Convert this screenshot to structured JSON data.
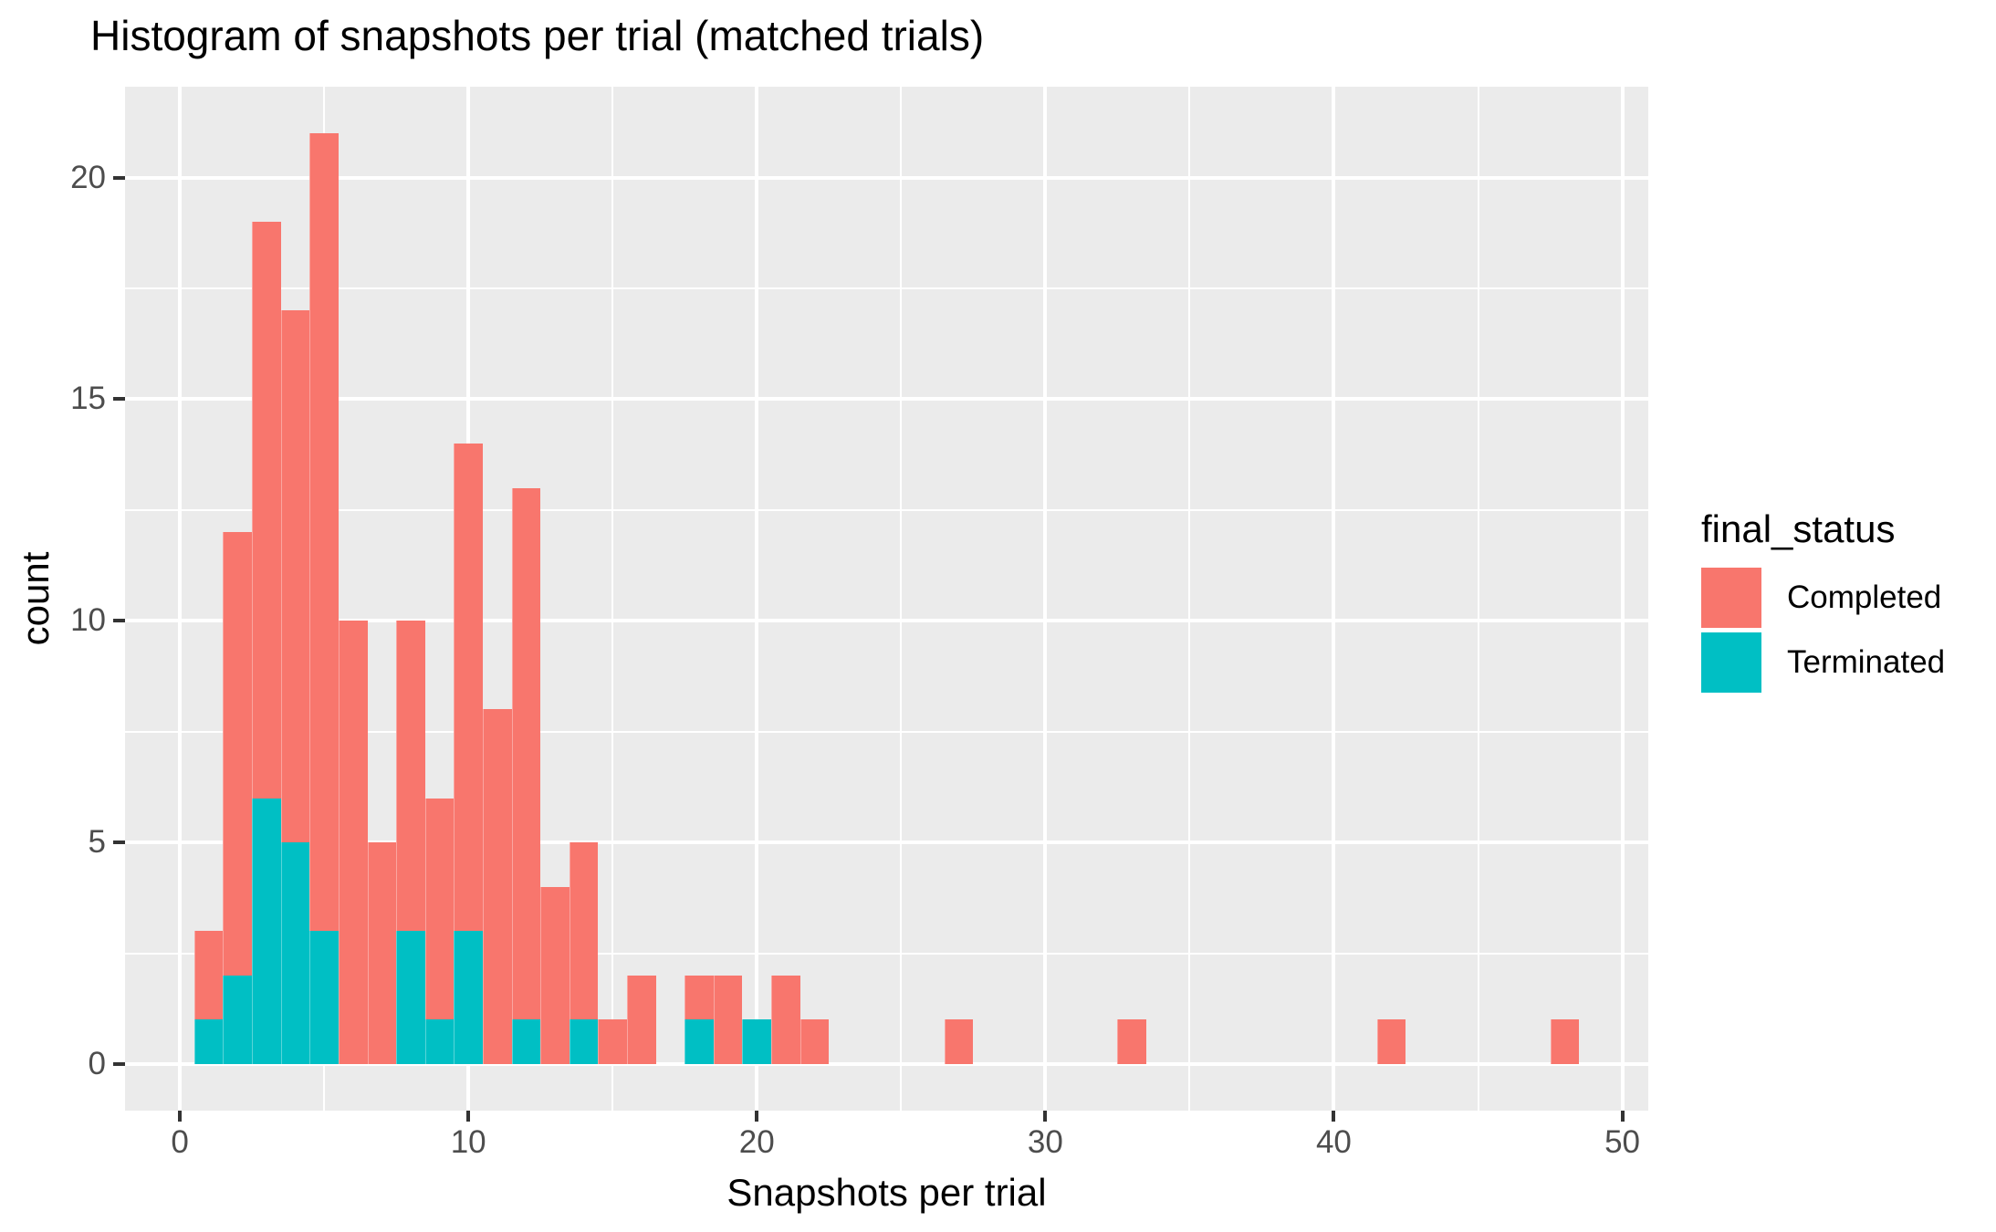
{
  "title": "Histogram of snapshots per trial (matched trials)",
  "chart_data": {
    "type": "bar",
    "subtype": "stacked_histogram",
    "title": "Histogram of snapshots per trial (matched trials)",
    "xlabel": "Snapshots per trial",
    "ylabel": "count",
    "legend_title": "final_status",
    "legend_position": "right",
    "grid": true,
    "binwidth": 1,
    "xlim": [
      -1.9,
      50.9
    ],
    "ylim": [
      -1.05,
      22.05
    ],
    "x_ticks": [
      0,
      10,
      20,
      30,
      40,
      50
    ],
    "y_ticks": [
      0,
      5,
      10,
      15,
      20
    ],
    "x_minor_gridlines": [
      5,
      15,
      25,
      35,
      45
    ],
    "y_minor_gridlines": [
      2.5,
      7.5,
      12.5,
      17.5
    ],
    "series": [
      {
        "name": "Completed",
        "color": "#F8766D"
      },
      {
        "name": "Terminated",
        "color": "#00BFC4"
      }
    ],
    "stack_order_bottom_to_top": [
      "Terminated",
      "Completed"
    ],
    "bins": [
      {
        "x": 1,
        "Completed": 2,
        "Terminated": 1
      },
      {
        "x": 2,
        "Completed": 10,
        "Terminated": 2
      },
      {
        "x": 3,
        "Completed": 13,
        "Terminated": 6
      },
      {
        "x": 4,
        "Completed": 12,
        "Terminated": 5
      },
      {
        "x": 5,
        "Completed": 18,
        "Terminated": 3
      },
      {
        "x": 6,
        "Completed": 10,
        "Terminated": 0
      },
      {
        "x": 7,
        "Completed": 5,
        "Terminated": 0
      },
      {
        "x": 8,
        "Completed": 7,
        "Terminated": 3
      },
      {
        "x": 9,
        "Completed": 5,
        "Terminated": 1
      },
      {
        "x": 10,
        "Completed": 11,
        "Terminated": 3
      },
      {
        "x": 11,
        "Completed": 8,
        "Terminated": 0
      },
      {
        "x": 12,
        "Completed": 12,
        "Terminated": 1
      },
      {
        "x": 13,
        "Completed": 4,
        "Terminated": 0
      },
      {
        "x": 14,
        "Completed": 4,
        "Terminated": 1
      },
      {
        "x": 15,
        "Completed": 1,
        "Terminated": 0
      },
      {
        "x": 16,
        "Completed": 2,
        "Terminated": 0
      },
      {
        "x": 18,
        "Completed": 1,
        "Terminated": 1
      },
      {
        "x": 19,
        "Completed": 2,
        "Terminated": 0
      },
      {
        "x": 20,
        "Completed": 0,
        "Terminated": 1
      },
      {
        "x": 21,
        "Completed": 2,
        "Terminated": 0
      },
      {
        "x": 22,
        "Completed": 1,
        "Terminated": 0
      },
      {
        "x": 27,
        "Completed": 1,
        "Terminated": 0
      },
      {
        "x": 33,
        "Completed": 1,
        "Terminated": 0
      },
      {
        "x": 42,
        "Completed": 1,
        "Terminated": 0
      },
      {
        "x": 48,
        "Completed": 1,
        "Terminated": 0
      }
    ],
    "colors": {
      "panel_background": "#EBEBEB",
      "gridline": "#FFFFFF",
      "tick_text": "#4D4D4D",
      "tick_mark": "#333333",
      "title_text": "#000000"
    }
  },
  "legend": {
    "title": "final_status",
    "items": [
      {
        "label": "Completed",
        "color": "#F8766D"
      },
      {
        "label": "Terminated",
        "color": "#00BFC4"
      }
    ]
  }
}
